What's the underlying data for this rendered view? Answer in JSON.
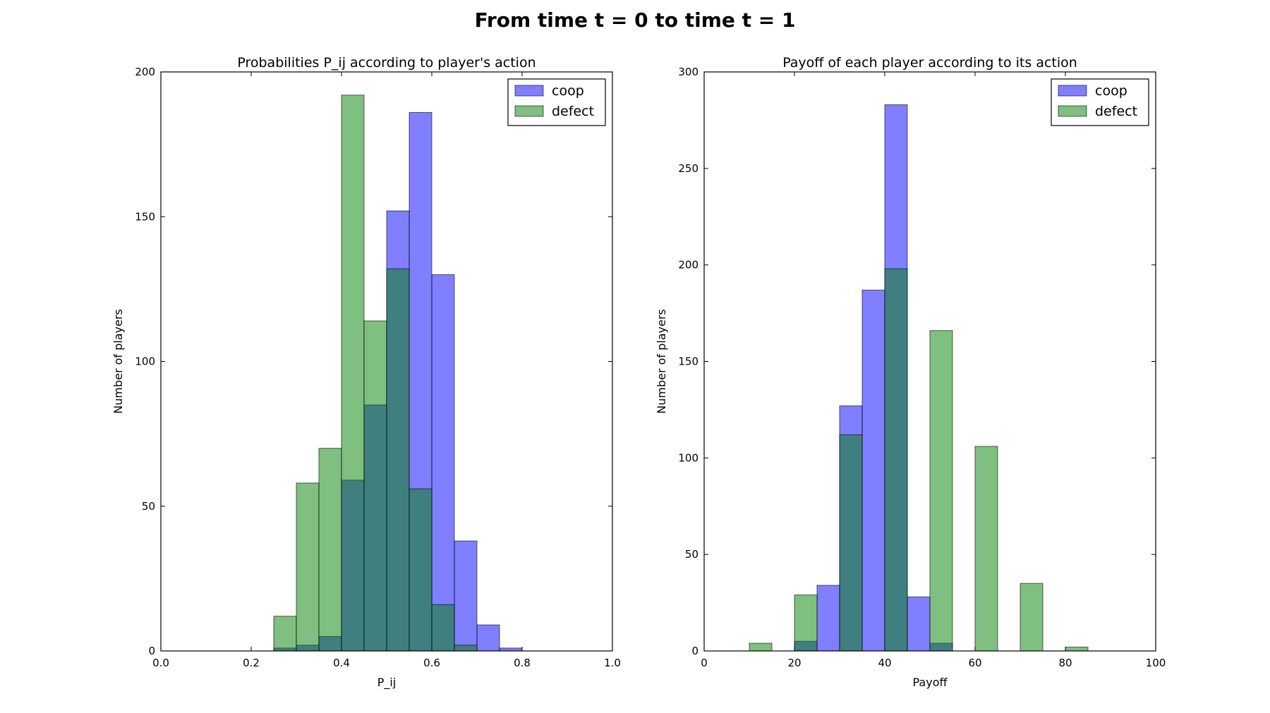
{
  "suptitle": "From time t = 0 to time t = 1",
  "colors": {
    "coop": "#0000ff",
    "defect": "#008000",
    "alpha": 0.5
  },
  "chart_data": [
    {
      "type": "bar",
      "title": "Probabilities P_ij according to player's action",
      "xlabel": "P_ij",
      "ylabel": "Number of players",
      "xlim": [
        0.0,
        1.0
      ],
      "ylim": [
        0,
        200
      ],
      "xticks": [
        0.0,
        0.2,
        0.4,
        0.6,
        0.8,
        1.0
      ],
      "xtick_labels": [
        "0.0",
        "0.2",
        "0.4",
        "0.6",
        "0.8",
        "1.0"
      ],
      "yticks": [
        0,
        50,
        100,
        150,
        200
      ],
      "ytick_labels": [
        "0",
        "50",
        "100",
        "150",
        "200"
      ],
      "legend": "top-right",
      "bin_edges": [
        0.0,
        0.05,
        0.1,
        0.15,
        0.2,
        0.25,
        0.3,
        0.35,
        0.4,
        0.45,
        0.5,
        0.55,
        0.6,
        0.65,
        0.7,
        0.75,
        0.8,
        0.85,
        0.9,
        0.95
      ],
      "series": [
        {
          "name": "coop",
          "values": [
            0,
            0,
            0,
            0,
            0,
            1,
            2,
            5,
            59,
            85,
            152,
            186,
            130,
            38,
            9,
            1,
            0,
            0,
            0
          ]
        },
        {
          "name": "defect",
          "values": [
            0,
            0,
            0,
            0,
            0,
            12,
            58,
            70,
            192,
            114,
            132,
            56,
            16,
            2,
            0,
            0,
            0,
            0,
            0
          ]
        }
      ]
    },
    {
      "type": "bar",
      "title": "Payoff of each player according to its action",
      "xlabel": "Payoff",
      "ylabel": "Number of players",
      "xlim": [
        0,
        100
      ],
      "ylim": [
        0,
        300
      ],
      "xticks": [
        0,
        20,
        40,
        60,
        80,
        100
      ],
      "xtick_labels": [
        "0",
        "20",
        "40",
        "60",
        "80",
        "100"
      ],
      "yticks": [
        0,
        50,
        100,
        150,
        200,
        250,
        300
      ],
      "ytick_labels": [
        "0",
        "50",
        "100",
        "150",
        "200",
        "250",
        "300"
      ],
      "legend": "top-right",
      "bin_edges": [
        0,
        5,
        10,
        15,
        20,
        25,
        30,
        35,
        40,
        45,
        50,
        55,
        60,
        65,
        70,
        75,
        80,
        85,
        90,
        95
      ],
      "series": [
        {
          "name": "coop",
          "values": [
            0,
            0,
            0,
            0,
            5,
            34,
            127,
            187,
            283,
            28,
            4,
            0,
            0,
            0,
            0,
            0,
            0,
            0,
            0
          ]
        },
        {
          "name": "defect",
          "values": [
            0,
            0,
            4,
            0,
            29,
            0,
            112,
            0,
            198,
            0,
            166,
            0,
            106,
            0,
            35,
            0,
            2,
            0,
            0
          ]
        }
      ]
    }
  ]
}
